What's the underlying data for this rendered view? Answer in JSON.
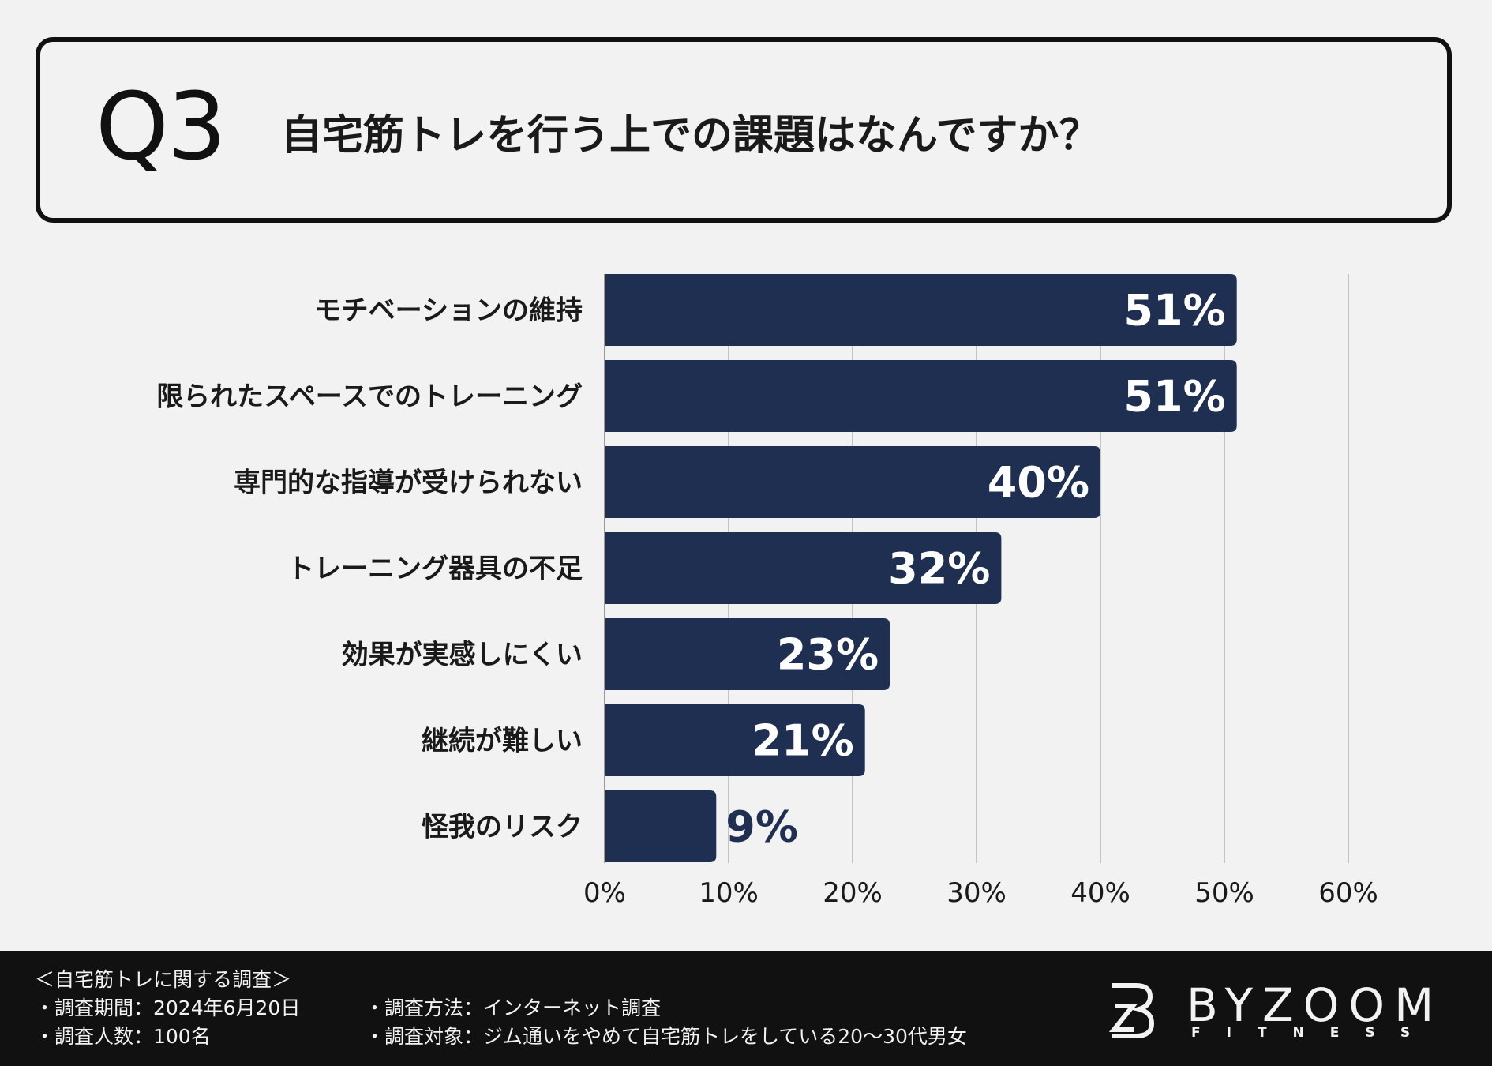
{
  "question": {
    "label": "Q3",
    "text": "自宅筋トレを行う上での課題はなんですか？"
  },
  "chart_data": {
    "type": "bar",
    "orientation": "horizontal",
    "categories": [
      "モチベーションの維持",
      "限られたスペースでのトレーニング",
      "専門的な指導が受けられない",
      "トレーニング器具の不足",
      "効果が実感しにくい",
      "継続が難しい",
      "怪我のリスク"
    ],
    "values": [
      51,
      51,
      40,
      32,
      23,
      21,
      9
    ],
    "value_labels": [
      "51%",
      "51%",
      "40%",
      "32%",
      "23%",
      "21%",
      "9%"
    ],
    "xlim": [
      0,
      60
    ],
    "ticks": [
      0,
      10,
      20,
      30,
      40,
      50,
      60
    ],
    "tick_labels": [
      "0%",
      "10%",
      "20%",
      "30%",
      "40%",
      "50%",
      "60%"
    ],
    "grid": true,
    "bar_color": "#1f2f52",
    "label_inside_color": "#ffffff",
    "label_outside_color": "#1f2f52",
    "grid_color": "#c4c4c4"
  },
  "footer": {
    "survey_title": "＜自宅筋トレに関する調査＞",
    "period": "・調査期間：2024年6月20日",
    "count": "・調査人数：100名",
    "method": "・調査方法：インターネット調査",
    "target": "・調査対象：ジム通いをやめて自宅筋トレをしている20〜30代男女",
    "logo_text": "BYZOOM",
    "logo_sub": "FITNESS"
  },
  "colors": {
    "background": "#f2f2f2",
    "footer_bg": "#111111",
    "text": "#1a1a1a"
  }
}
